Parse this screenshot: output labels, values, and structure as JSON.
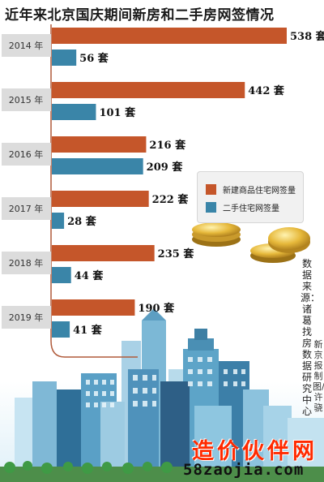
{
  "title": "近年来北京国庆期间新房和二手房网签情况",
  "legend": {
    "new": "新建商品住宅网签量",
    "second": "二手住宅网签量"
  },
  "colors": {
    "new": "#c5562a",
    "second": "#3a85a8",
    "year_tab": "#dcdcdc",
    "axis": "#b05a3a"
  },
  "source": "数据来源：诸葛找房数据研究中心",
  "credit": "新京报制图/许骁",
  "watermark": {
    "site": "造价伙伴网",
    "url": "58zaojia.com"
  },
  "chart_data": {
    "type": "bar",
    "orientation": "horizontal",
    "title": "近年来北京国庆期间新房和二手房网签情况",
    "categories": [
      "2014 年",
      "2015 年",
      "2016 年",
      "2017 年",
      "2018 年",
      "2019 年"
    ],
    "unit": "套",
    "series": [
      {
        "name": "新建商品住宅网签量",
        "values": [
          538,
          442,
          216,
          222,
          235,
          190
        ]
      },
      {
        "name": "二手住宅网签量",
        "values": [
          56,
          101,
          209,
          28,
          44,
          41
        ]
      }
    ],
    "legend_position": "right",
    "grid": false
  }
}
